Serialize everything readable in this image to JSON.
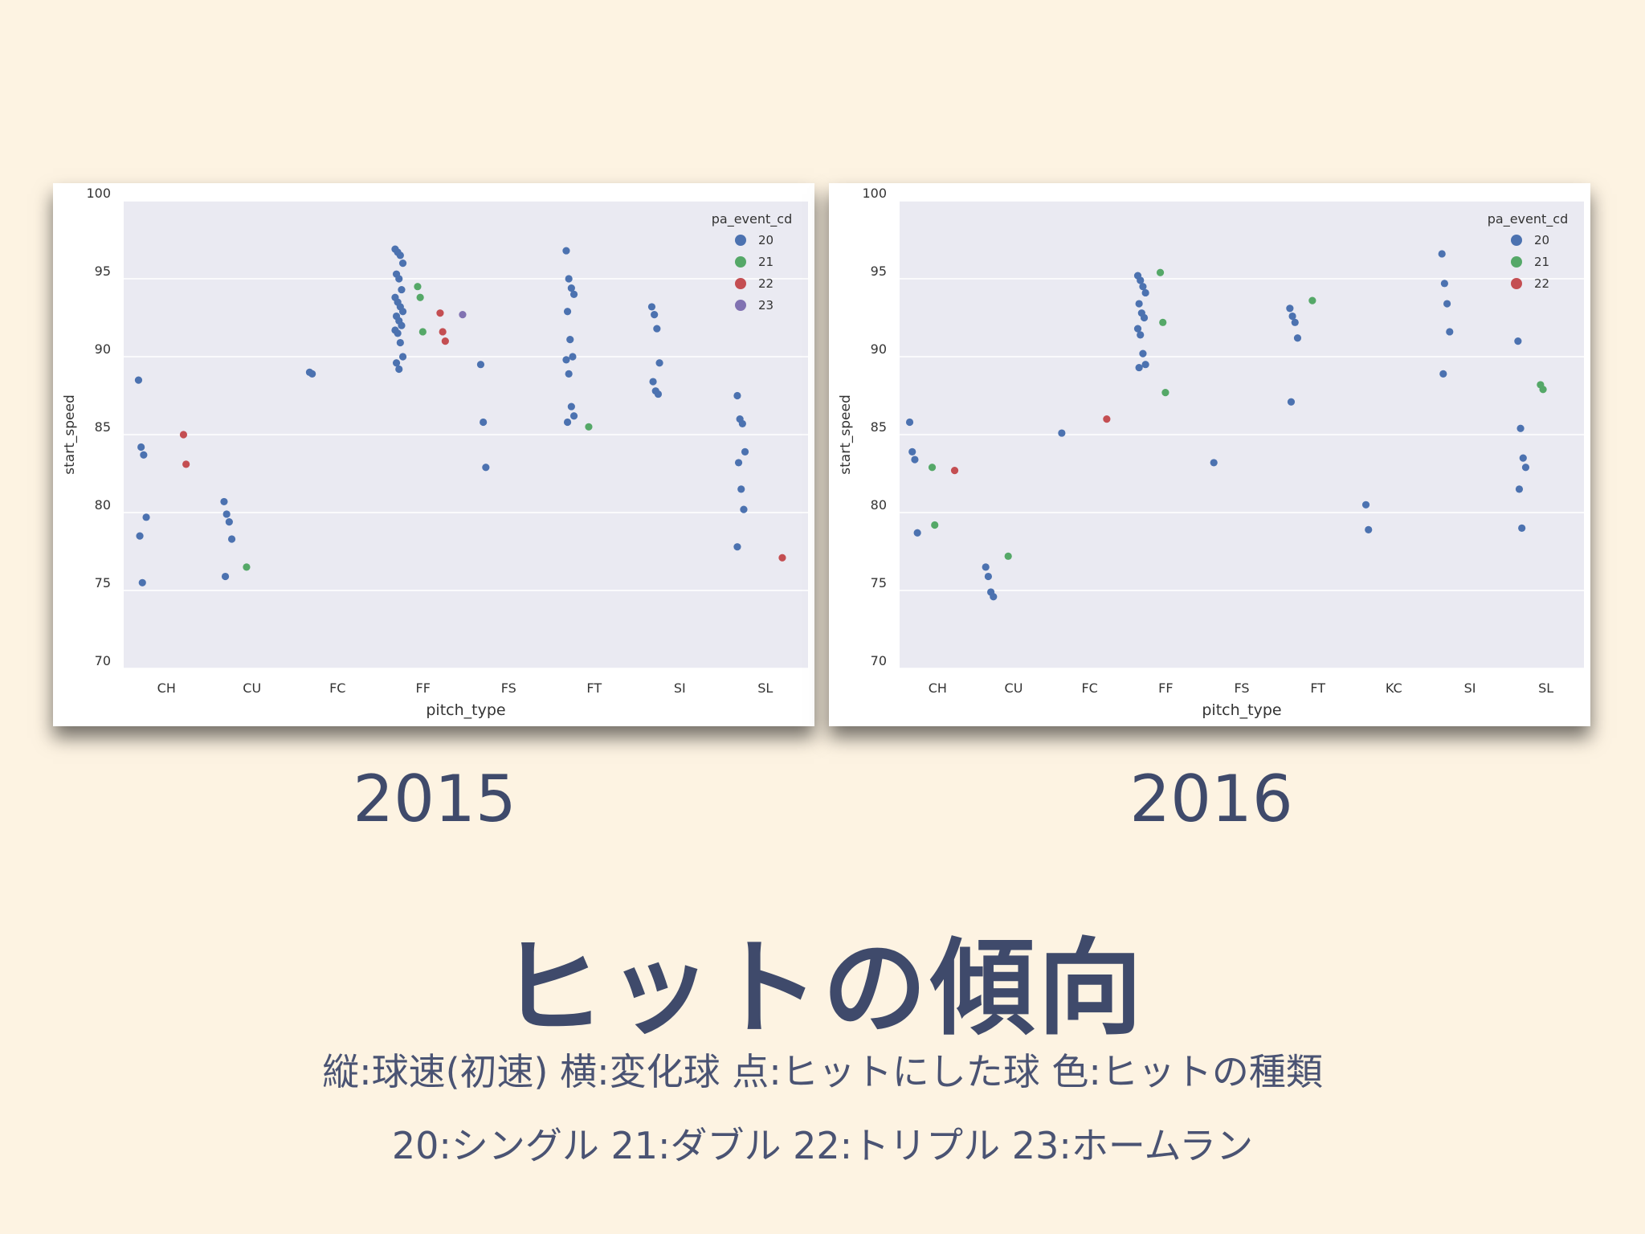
{
  "year_labels": [
    "2015",
    "2016"
  ],
  "title": "ヒットの傾向",
  "caption_line1": "縦:球速(初速) 横:変化球 点:ヒットにした球 色:ヒットの種類",
  "caption_line2": "20:シングル 21:ダブル 22:トリプル 23:ホームラン",
  "colors": {
    "20": "#4c72b0",
    "21": "#55a868",
    "22": "#c44e52",
    "23": "#8172b2",
    "plot_bg": "#eaeaf2",
    "grid": "#ffffff"
  },
  "chart_data": [
    {
      "type": "scatter",
      "xlabel": "pitch_type",
      "ylabel": "start_speed",
      "ylim": [
        70,
        100
      ],
      "yticks": [
        70,
        75,
        80,
        85,
        90,
        95,
        100
      ],
      "categories": [
        "CH",
        "CU",
        "FC",
        "FF",
        "FS",
        "FT",
        "SI",
        "SL"
      ],
      "legend_title": "pa_event_cd",
      "legend": [
        "20",
        "21",
        "22",
        "23"
      ],
      "legend_position": "top-right",
      "grid": true,
      "series": [
        {
          "name": "20",
          "points": [
            {
              "x": "CH",
              "y": 88.5
            },
            {
              "x": "CH",
              "y": 84.2
            },
            {
              "x": "CH",
              "y": 83.7
            },
            {
              "x": "CH",
              "y": 79.7
            },
            {
              "x": "CH",
              "y": 78.5
            },
            {
              "x": "CH",
              "y": 75.5
            },
            {
              "x": "CU",
              "y": 80.7
            },
            {
              "x": "CU",
              "y": 79.9
            },
            {
              "x": "CU",
              "y": 79.4
            },
            {
              "x": "CU",
              "y": 78.3
            },
            {
              "x": "CU",
              "y": 75.9
            },
            {
              "x": "FC",
              "y": 89.0
            },
            {
              "x": "FC",
              "y": 88.9
            },
            {
              "x": "FF",
              "y": 96.9
            },
            {
              "x": "FF",
              "y": 96.7
            },
            {
              "x": "FF",
              "y": 96.5
            },
            {
              "x": "FF",
              "y": 96.0
            },
            {
              "x": "FF",
              "y": 95.3
            },
            {
              "x": "FF",
              "y": 95.0
            },
            {
              "x": "FF",
              "y": 94.3
            },
            {
              "x": "FF",
              "y": 93.8
            },
            {
              "x": "FF",
              "y": 93.5
            },
            {
              "x": "FF",
              "y": 93.2
            },
            {
              "x": "FF",
              "y": 92.9
            },
            {
              "x": "FF",
              "y": 92.6
            },
            {
              "x": "FF",
              "y": 92.3
            },
            {
              "x": "FF",
              "y": 92.0
            },
            {
              "x": "FF",
              "y": 91.7
            },
            {
              "x": "FF",
              "y": 91.5
            },
            {
              "x": "FF",
              "y": 90.9
            },
            {
              "x": "FF",
              "y": 90.0
            },
            {
              "x": "FF",
              "y": 89.6
            },
            {
              "x": "FF",
              "y": 89.2
            },
            {
              "x": "FS",
              "y": 89.5
            },
            {
              "x": "FS",
              "y": 85.8
            },
            {
              "x": "FS",
              "y": 82.9
            },
            {
              "x": "FT",
              "y": 96.8
            },
            {
              "x": "FT",
              "y": 95.0
            },
            {
              "x": "FT",
              "y": 94.4
            },
            {
              "x": "FT",
              "y": 94.0
            },
            {
              "x": "FT",
              "y": 92.9
            },
            {
              "x": "FT",
              "y": 91.1
            },
            {
              "x": "FT",
              "y": 90.0
            },
            {
              "x": "FT",
              "y": 89.8
            },
            {
              "x": "FT",
              "y": 88.9
            },
            {
              "x": "FT",
              "y": 86.8
            },
            {
              "x": "FT",
              "y": 86.2
            },
            {
              "x": "FT",
              "y": 85.8
            },
            {
              "x": "SI",
              "y": 93.2
            },
            {
              "x": "SI",
              "y": 92.7
            },
            {
              "x": "SI",
              "y": 91.8
            },
            {
              "x": "SI",
              "y": 89.6
            },
            {
              "x": "SI",
              "y": 88.4
            },
            {
              "x": "SI",
              "y": 87.8
            },
            {
              "x": "SI",
              "y": 87.6
            },
            {
              "x": "SL",
              "y": 87.5
            },
            {
              "x": "SL",
              "y": 86.0
            },
            {
              "x": "SL",
              "y": 85.7
            },
            {
              "x": "SL",
              "y": 83.9
            },
            {
              "x": "SL",
              "y": 83.2
            },
            {
              "x": "SL",
              "y": 81.5
            },
            {
              "x": "SL",
              "y": 80.2
            },
            {
              "x": "SL",
              "y": 77.8
            }
          ]
        },
        {
          "name": "21",
          "points": [
            {
              "x": "CU",
              "y": 76.5
            },
            {
              "x": "FF",
              "y": 94.5
            },
            {
              "x": "FF",
              "y": 93.8
            },
            {
              "x": "FF",
              "y": 91.6
            },
            {
              "x": "FT",
              "y": 85.5
            }
          ]
        },
        {
          "name": "22",
          "points": [
            {
              "x": "CH",
              "y": 85.0
            },
            {
              "x": "CH",
              "y": 83.1
            },
            {
              "x": "FF",
              "y": 92.8
            },
            {
              "x": "FF",
              "y": 91.6
            },
            {
              "x": "FF",
              "y": 91.0
            },
            {
              "x": "SL",
              "y": 77.1
            }
          ]
        },
        {
          "name": "23",
          "points": [
            {
              "x": "FF",
              "y": 92.7
            }
          ]
        }
      ]
    },
    {
      "type": "scatter",
      "xlabel": "pitch_type",
      "ylabel": "start_speed",
      "ylim": [
        70,
        100
      ],
      "yticks": [
        70,
        75,
        80,
        85,
        90,
        95,
        100
      ],
      "categories": [
        "CH",
        "CU",
        "FC",
        "FF",
        "FS",
        "FT",
        "KC",
        "SI",
        "SL"
      ],
      "legend_title": "pa_event_cd",
      "legend": [
        "20",
        "21",
        "22"
      ],
      "legend_position": "top-right",
      "grid": true,
      "series": [
        {
          "name": "20",
          "points": [
            {
              "x": "CH",
              "y": 85.8
            },
            {
              "x": "CH",
              "y": 83.9
            },
            {
              "x": "CH",
              "y": 83.4
            },
            {
              "x": "CH",
              "y": 78.7
            },
            {
              "x": "CU",
              "y": 76.5
            },
            {
              "x": "CU",
              "y": 75.9
            },
            {
              "x": "CU",
              "y": 74.9
            },
            {
              "x": "CU",
              "y": 74.6
            },
            {
              "x": "FC",
              "y": 85.1
            },
            {
              "x": "FF",
              "y": 95.2
            },
            {
              "x": "FF",
              "y": 94.9
            },
            {
              "x": "FF",
              "y": 94.5
            },
            {
              "x": "FF",
              "y": 94.1
            },
            {
              "x": "FF",
              "y": 93.4
            },
            {
              "x": "FF",
              "y": 92.8
            },
            {
              "x": "FF",
              "y": 92.5
            },
            {
              "x": "FF",
              "y": 91.8
            },
            {
              "x": "FF",
              "y": 91.4
            },
            {
              "x": "FF",
              "y": 90.2
            },
            {
              "x": "FF",
              "y": 89.5
            },
            {
              "x": "FF",
              "y": 89.3
            },
            {
              "x": "FS",
              "y": 83.2
            },
            {
              "x": "FT",
              "y": 93.1
            },
            {
              "x": "FT",
              "y": 92.6
            },
            {
              "x": "FT",
              "y": 92.2
            },
            {
              "x": "FT",
              "y": 91.2
            },
            {
              "x": "FT",
              "y": 87.1
            },
            {
              "x": "KC",
              "y": 80.5
            },
            {
              "x": "KC",
              "y": 78.9
            },
            {
              "x": "SI",
              "y": 96.6
            },
            {
              "x": "SI",
              "y": 94.7
            },
            {
              "x": "SI",
              "y": 93.4
            },
            {
              "x": "SI",
              "y": 91.6
            },
            {
              "x": "SI",
              "y": 88.9
            },
            {
              "x": "SL",
              "y": 91.0
            },
            {
              "x": "SL",
              "y": 85.4
            },
            {
              "x": "SL",
              "y": 83.5
            },
            {
              "x": "SL",
              "y": 82.9
            },
            {
              "x": "SL",
              "y": 81.5
            },
            {
              "x": "SL",
              "y": 79.0
            }
          ]
        },
        {
          "name": "21",
          "points": [
            {
              "x": "CH",
              "y": 82.9
            },
            {
              "x": "CH",
              "y": 79.2
            },
            {
              "x": "CU",
              "y": 77.2
            },
            {
              "x": "FF",
              "y": 95.4
            },
            {
              "x": "FF",
              "y": 92.2
            },
            {
              "x": "FF",
              "y": 87.7
            },
            {
              "x": "FT",
              "y": 93.6
            },
            {
              "x": "SL",
              "y": 88.2
            },
            {
              "x": "SL",
              "y": 87.9
            }
          ]
        },
        {
          "name": "22",
          "points": [
            {
              "x": "CH",
              "y": 82.7
            },
            {
              "x": "FC",
              "y": 86.0
            }
          ]
        }
      ]
    }
  ]
}
